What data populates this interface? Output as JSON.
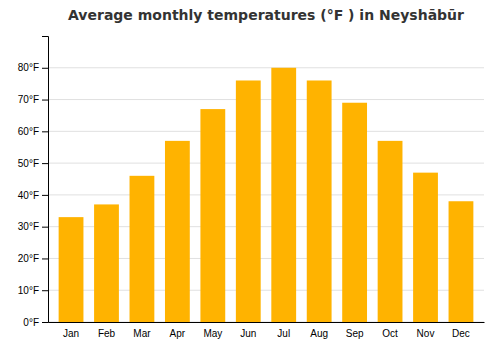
{
  "chart_data": {
    "type": "bar",
    "title": "Average monthly temperatures (°F ) in Neyshābūr",
    "categories": [
      "Jan",
      "Feb",
      "Mar",
      "Apr",
      "May",
      "Jun",
      "Jul",
      "Aug",
      "Sep",
      "Oct",
      "Nov",
      "Dec"
    ],
    "values": [
      33,
      37,
      46,
      57,
      67,
      76,
      80,
      76,
      69,
      57,
      47,
      38
    ],
    "color": "#FFB300",
    "ylim": [
      0,
      90
    ],
    "yticks": [
      {
        "value": 0,
        "label": "0°F"
      },
      {
        "value": 10,
        "label": "10°F"
      },
      {
        "value": 20,
        "label": "20°F"
      },
      {
        "value": 30,
        "label": "30°F"
      },
      {
        "value": 40,
        "label": "40°F"
      },
      {
        "value": 50,
        "label": "50°F"
      },
      {
        "value": 60,
        "label": "60°F"
      },
      {
        "value": 70,
        "label": "70°F"
      },
      {
        "value": 80,
        "label": "80°F"
      }
    ],
    "grid": true
  }
}
